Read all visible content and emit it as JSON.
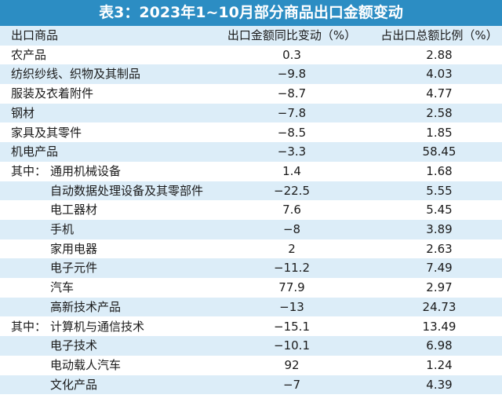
{
  "header": {
    "title": "表3：2023年1~10月部分商品出口金额变动"
  },
  "table": {
    "columns": [
      "出口商品",
      "出口金额同比变动（%）",
      "占出口总额比例（%）"
    ],
    "rows": [
      {
        "level": 0,
        "label": "农产品",
        "change": "0.3",
        "share": "2.88"
      },
      {
        "level": 0,
        "label": "纺织纱线、织物及其制品",
        "change": "−9.8",
        "share": "4.03"
      },
      {
        "level": 0,
        "label": "服装及衣着附件",
        "change": "−8.7",
        "share": "4.77"
      },
      {
        "level": 0,
        "label": "钢材",
        "change": "−7.8",
        "share": "2.58"
      },
      {
        "level": 0,
        "label": "家具及其零件",
        "change": "−8.5",
        "share": "1.85"
      },
      {
        "level": 0,
        "label": "机电产品",
        "change": "−3.3",
        "share": "58.45"
      },
      {
        "level": 1,
        "prefix": "其中：",
        "label": "通用机械设备",
        "change": "1.4",
        "share": "1.68"
      },
      {
        "level": 1,
        "label": "自动数据处理设备及其零部件",
        "change": "−22.5",
        "share": "5.55"
      },
      {
        "level": 1,
        "label": "电工器材",
        "change": "7.6",
        "share": "5.45"
      },
      {
        "level": 1,
        "label": "手机",
        "change": "−8",
        "share": "3.89"
      },
      {
        "level": 1,
        "label": "家用电器",
        "change": "2",
        "share": "2.63"
      },
      {
        "level": 1,
        "label": "电子元件",
        "change": "−11.2",
        "share": "7.49"
      },
      {
        "level": 1,
        "label": "汽车",
        "change": "77.9",
        "share": "2.97"
      },
      {
        "level": 1,
        "label": "高新技术产品",
        "change": "−13",
        "share": "24.73"
      },
      {
        "level": 1,
        "prefix": "其中：",
        "label": "计算机与通信技术",
        "change": "−15.1",
        "share": "13.49"
      },
      {
        "level": 1,
        "label": "电子技术",
        "change": "−10.1",
        "share": "6.98"
      },
      {
        "level": 1,
        "label": "电动载人汽车",
        "change": "92",
        "share": "1.24"
      },
      {
        "level": 1,
        "label": "文化产品",
        "change": "−7",
        "share": "4.39"
      }
    ]
  }
}
